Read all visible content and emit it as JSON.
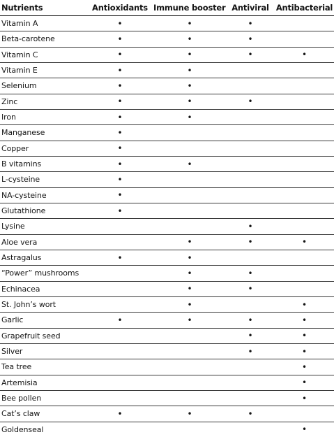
{
  "headers": [
    "Nutrients",
    "Antioxidants",
    "Immune boosters",
    "Antiviral",
    "Antibacterial"
  ],
  "bullet": "•",
  "rows": [
    {
      "name": "Vitamin A",
      "marks": [
        true,
        true,
        true,
        false
      ]
    },
    {
      "name": "Beta-carotene",
      "marks": [
        true,
        true,
        true,
        false
      ]
    },
    {
      "name": "Vitamin C",
      "marks": [
        true,
        true,
        true,
        true
      ]
    },
    {
      "name": "Vitamin E",
      "marks": [
        true,
        true,
        false,
        false
      ]
    },
    {
      "name": "Selenium",
      "marks": [
        true,
        true,
        false,
        false
      ]
    },
    {
      "name": "Zinc",
      "marks": [
        true,
        true,
        true,
        false
      ]
    },
    {
      "name": "Iron",
      "marks": [
        true,
        true,
        false,
        false
      ]
    },
    {
      "name": "Manganese",
      "marks": [
        true,
        false,
        false,
        false
      ]
    },
    {
      "name": "Copper",
      "marks": [
        true,
        false,
        false,
        false
      ]
    },
    {
      "name": "B vitamins",
      "marks": [
        true,
        true,
        false,
        false
      ]
    },
    {
      "name": "L-cysteine",
      "marks": [
        true,
        false,
        false,
        false
      ]
    },
    {
      "name": "NA-cysteine",
      "marks": [
        true,
        false,
        false,
        false
      ]
    },
    {
      "name": "Glutathione",
      "marks": [
        true,
        false,
        false,
        false
      ]
    },
    {
      "name": "Lysine",
      "marks": [
        false,
        false,
        true,
        false
      ]
    },
    {
      "name": "Aloe vera",
      "marks": [
        false,
        true,
        true,
        true
      ]
    },
    {
      "name": "Astragalus",
      "marks": [
        true,
        true,
        false,
        false
      ]
    },
    {
      "name": "“Power” mushrooms",
      "marks": [
        false,
        true,
        true,
        false
      ]
    },
    {
      "name": "Echinacea",
      "marks": [
        false,
        true,
        true,
        false
      ]
    },
    {
      "name": "St. John’s wort",
      "marks": [
        false,
        true,
        false,
        true
      ]
    },
    {
      "name": "Garlic",
      "marks": [
        true,
        true,
        true,
        true
      ]
    },
    {
      "name": "Grapefruit seed",
      "marks": [
        false,
        false,
        true,
        true
      ]
    },
    {
      "name": "Silver",
      "marks": [
        false,
        false,
        true,
        true
      ]
    },
    {
      "name": "Tea tree",
      "marks": [
        false,
        false,
        false,
        true
      ]
    },
    {
      "name": "Artemisia",
      "marks": [
        false,
        false,
        false,
        true
      ]
    },
    {
      "name": "Bee pollen",
      "marks": [
        false,
        false,
        false,
        true
      ]
    },
    {
      "name": "Cat’s claw",
      "marks": [
        true,
        true,
        true,
        false
      ]
    },
    {
      "name": "Goldenseal",
      "marks": [
        false,
        false,
        false,
        true
      ]
    }
  ]
}
